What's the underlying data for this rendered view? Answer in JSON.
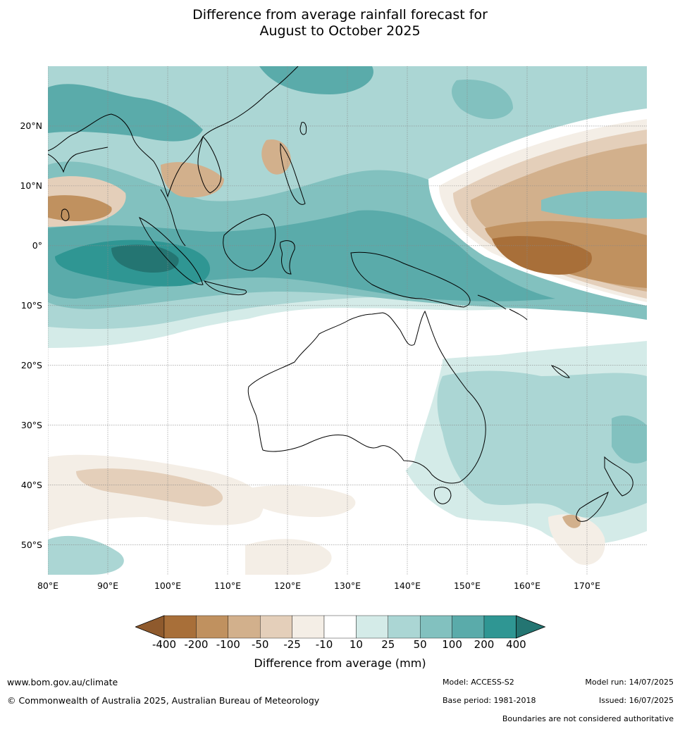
{
  "title_line1": "Difference from average rainfall forecast for",
  "title_line2": "August to October 2025",
  "lat_labels": [
    "20°N",
    "10°N",
    "0°",
    "10°S",
    "20°S",
    "30°S",
    "40°S",
    "50°S"
  ],
  "lat_values": [
    20,
    10,
    0,
    -10,
    -20,
    -30,
    -40,
    -50
  ],
  "lon_labels": [
    "80°E",
    "90°E",
    "100°E",
    "110°E",
    "120°E",
    "130°E",
    "140°E",
    "150°E",
    "160°E",
    "170°E"
  ],
  "lon_values": [
    80,
    90,
    100,
    110,
    120,
    130,
    140,
    150,
    160,
    170
  ],
  "map_extent": {
    "lon_min": 80,
    "lon_max": 180,
    "lat_min": -55,
    "lat_max": 30
  },
  "colorbar": {
    "title": "Difference from average (mm)",
    "ticks": [
      "-400",
      "-200",
      "-100",
      "-50",
      "-25",
      "-10",
      "10",
      "25",
      "50",
      "100",
      "200",
      "400"
    ],
    "colors": [
      "#a86f39",
      "#c0915f",
      "#d2b08c",
      "#e4cfba",
      "#f4eee6",
      "#ffffff",
      "#d4ebe8",
      "#abd6d4",
      "#82c1bf",
      "#5aabaa",
      "#2f9693"
    ],
    "under_color": "#8f5a2d",
    "over_color": "#247572"
  },
  "footer": {
    "url": "www.bom.gov.au/climate",
    "copyright": "© Commonwealth of Australia 2025, Australian Bureau of Meteorology",
    "model": "Model: ACCESS-S2",
    "base_period": "Base period: 1981-2018",
    "model_run": "Model run: 14/07/2025",
    "issued": "Issued: 16/07/2025",
    "disclaimer": "Boundaries are not considered authoritative"
  }
}
